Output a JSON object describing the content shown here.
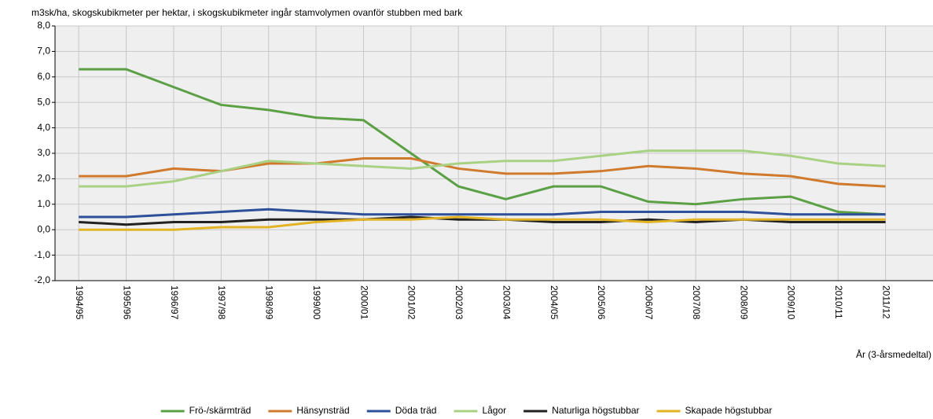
{
  "chart_data": {
    "type": "line",
    "title": "m3sk/ha, skogskubikmeter per hektar, i skogskubikmeter ingår stamvolymen ovanför stubben med bark",
    "x_label": "År (3-årsmedeltal)",
    "categories": [
      "1994/95",
      "1995/96",
      "1996/97",
      "1997/98",
      "1998/99",
      "1999/00",
      "2000/01",
      "2001/02",
      "2002/03",
      "2003/04",
      "2004/05",
      "2005/06",
      "2006/07",
      "2007/08",
      "2008/09",
      "2009/10",
      "2010/11",
      "2011/12"
    ],
    "series": [
      {
        "name": "Frö-/skärmträd",
        "color": "#5ba044",
        "values": [
          6.3,
          6.3,
          5.6,
          4.9,
          4.7,
          4.4,
          4.3,
          3.0,
          1.7,
          1.2,
          1.7,
          1.7,
          1.1,
          1.0,
          1.2,
          1.3,
          0.7,
          0.6
        ]
      },
      {
        "name": "Hänsynsträd",
        "color": "#d07a2e",
        "values": [
          2.1,
          2.1,
          2.4,
          2.3,
          2.6,
          2.6,
          2.8,
          2.8,
          2.4,
          2.2,
          2.2,
          2.3,
          2.5,
          2.4,
          2.2,
          2.1,
          1.8,
          1.7
        ]
      },
      {
        "name": "Döda träd",
        "color": "#2e4f9a",
        "values": [
          0.5,
          0.5,
          0.6,
          0.7,
          0.8,
          0.7,
          0.6,
          0.6,
          0.6,
          0.6,
          0.6,
          0.7,
          0.7,
          0.7,
          0.7,
          0.6,
          0.6,
          0.6
        ]
      },
      {
        "name": "Lågor",
        "color": "#a9d184",
        "values": [
          1.7,
          1.7,
          1.9,
          2.3,
          2.7,
          2.6,
          2.5,
          2.4,
          2.6,
          2.7,
          2.7,
          2.9,
          3.1,
          3.1,
          3.1,
          2.9,
          2.6,
          2.5
        ]
      },
      {
        "name": "Naturliga högstubbar",
        "color": "#222222",
        "values": [
          0.3,
          0.2,
          0.3,
          0.3,
          0.4,
          0.4,
          0.4,
          0.5,
          0.4,
          0.4,
          0.3,
          0.3,
          0.4,
          0.3,
          0.4,
          0.3,
          0.3,
          0.3
        ]
      },
      {
        "name": "Skapade högstubbar",
        "color": "#e2b325",
        "values": [
          0.0,
          0.0,
          0.0,
          0.1,
          0.1,
          0.3,
          0.4,
          0.4,
          0.5,
          0.4,
          0.4,
          0.4,
          0.3,
          0.4,
          0.4,
          0.4,
          0.4,
          0.4
        ]
      }
    ],
    "ylim": [
      -2,
      8
    ],
    "yticks": [
      {
        "value": -2,
        "label": "-2,0"
      },
      {
        "value": -1,
        "label": "-1,0"
      },
      {
        "value": 0,
        "label": "0,0"
      },
      {
        "value": 1,
        "label": "1,0"
      },
      {
        "value": 2,
        "label": "2,0"
      },
      {
        "value": 3,
        "label": "3,0"
      },
      {
        "value": 4,
        "label": "4,0"
      },
      {
        "value": 5,
        "label": "5,0"
      },
      {
        "value": 6,
        "label": "6,0"
      },
      {
        "value": 7,
        "label": "7,0"
      },
      {
        "value": 8,
        "label": "8,0"
      }
    ],
    "grid": true
  }
}
